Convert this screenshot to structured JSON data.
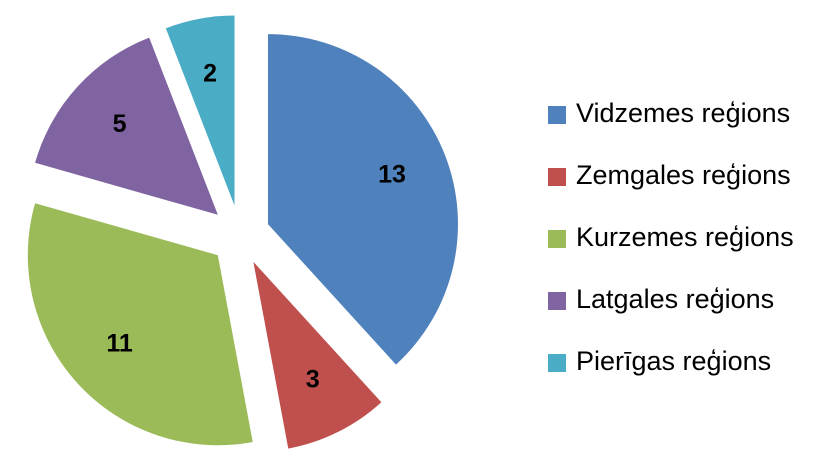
{
  "chart_data": {
    "type": "pie",
    "categories": [
      "Vidzemes reģions",
      "Zemgales reģions",
      "Kurzemes reģions",
      "Latgales reģions",
      "Pierīgas reģions"
    ],
    "values": [
      13,
      3,
      11,
      5,
      2
    ],
    "colors": [
      "#4f81bd",
      "#c0504d",
      "#9bbb59",
      "#8064a2",
      "#4bacc6"
    ],
    "exploded": true,
    "legend": "right"
  }
}
